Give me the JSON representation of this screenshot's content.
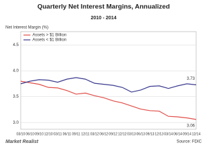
{
  "chart_data": {
    "type": "line",
    "title": "Quarterly Net Interest Margins, Annualized",
    "subtitle": "2010 - 2014",
    "y_label": "Net Interest Margin (%)",
    "source": "Source: FDIC",
    "brand": "Market Realist",
    "categories": [
      "03/10",
      "06/10",
      "09/10",
      "12/10",
      "03/11",
      "06/11",
      "09/11",
      "12/11",
      "03/12",
      "06/12",
      "09/12",
      "12/12",
      "03/13",
      "06/13",
      "09/13",
      "12/13",
      "03/14",
      "06/14",
      "09/14",
      "12/14"
    ],
    "series": [
      {
        "name": "Assets > $1 Billion",
        "color": "#e0504a",
        "values": [
          3.8,
          3.77,
          3.74,
          3.68,
          3.67,
          3.62,
          3.55,
          3.57,
          3.52,
          3.48,
          3.42,
          3.38,
          3.32,
          3.26,
          3.23,
          3.22,
          3.12,
          3.11,
          3.09,
          3.06
        ]
      },
      {
        "name": "Assets < $1 Billion",
        "color": "#3b3b8f",
        "values": [
          3.75,
          3.8,
          3.83,
          3.82,
          3.78,
          3.84,
          3.87,
          3.84,
          3.76,
          3.74,
          3.72,
          3.68,
          3.59,
          3.63,
          3.7,
          3.71,
          3.66,
          3.71,
          3.75,
          3.73
        ]
      }
    ],
    "ylim": [
      2.87,
      4.76
    ],
    "yticks": [
      {
        "value": 3.0,
        "label": "3.0"
      },
      {
        "value": 3.5,
        "label": "3.5"
      },
      {
        "value": 4.0,
        "label": "4.0"
      },
      {
        "value": 4.5,
        "label": "4.5"
      }
    ],
    "grid": true,
    "legend": "top-left"
  }
}
